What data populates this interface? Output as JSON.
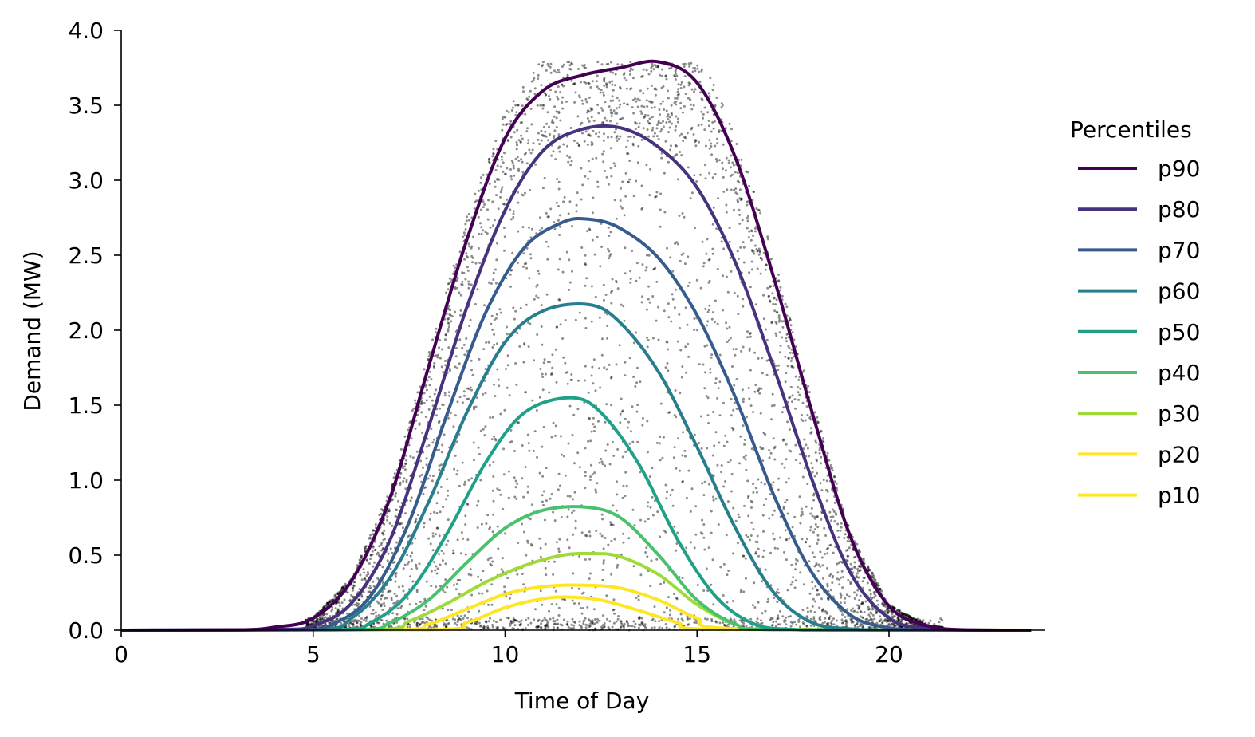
{
  "chart_data": {
    "type": "line",
    "xlabel": "Time of Day",
    "ylabel": "Demand (MW)",
    "xlim": [
      0,
      24
    ],
    "ylim": [
      0,
      4.0
    ],
    "x_ticks": [
      0,
      5,
      10,
      15,
      20
    ],
    "x_tick_labels": [
      "0",
      "5",
      "10",
      "15",
      "20"
    ],
    "y_ticks": [
      0,
      0.5,
      1.0,
      1.5,
      2.0,
      2.5,
      3.0,
      3.5,
      4.0
    ],
    "y_tick_labels": [
      "0.0",
      "0.5",
      "1.0",
      "1.5",
      "2.0",
      "2.5",
      "3.0",
      "3.5",
      "4.0"
    ],
    "grid": false,
    "legend": {
      "title": "Percentiles",
      "placement": "right"
    },
    "scatter": {
      "color": "#000000",
      "approx_count": 5000,
      "ymax": 3.79,
      "description_only": false
    },
    "series": [
      {
        "name": "p90",
        "color": "#440154",
        "x": [
          0,
          3,
          4,
          5,
          6,
          7,
          8,
          9,
          10,
          11,
          12,
          13,
          14,
          15,
          16,
          17,
          18,
          19,
          20,
          21,
          22,
          23.7
        ],
        "y": [
          0,
          0.002,
          0.02,
          0.08,
          0.33,
          0.88,
          1.75,
          2.6,
          3.28,
          3.6,
          3.7,
          3.75,
          3.79,
          3.65,
          3.15,
          2.35,
          1.45,
          0.62,
          0.16,
          0.03,
          0.002,
          0
        ]
      },
      {
        "name": "p80",
        "color": "#46327e",
        "x": [
          0,
          4,
          5,
          6,
          7,
          8,
          9,
          10,
          11,
          12,
          13,
          14,
          15,
          16,
          17,
          18,
          19,
          20,
          21,
          22,
          23.7
        ],
        "y": [
          0,
          0.005,
          0.03,
          0.18,
          0.6,
          1.35,
          2.15,
          2.8,
          3.2,
          3.34,
          3.35,
          3.22,
          2.95,
          2.45,
          1.75,
          1.0,
          0.38,
          0.08,
          0.01,
          0.001,
          0
        ]
      },
      {
        "name": "p70",
        "color": "#365c8d",
        "x": [
          0,
          4.5,
          5.5,
          6.5,
          7.5,
          8.5,
          9.5,
          10.5,
          11.5,
          12.2,
          13,
          14,
          15,
          16,
          17,
          18,
          19,
          20,
          21,
          22,
          23.7
        ],
        "y": [
          0,
          0.003,
          0.04,
          0.23,
          0.72,
          1.45,
          2.12,
          2.55,
          2.72,
          2.74,
          2.68,
          2.48,
          2.1,
          1.55,
          0.9,
          0.38,
          0.1,
          0.015,
          0.002,
          0,
          0
        ]
      },
      {
        "name": "p60",
        "color": "#277f8e",
        "x": [
          0,
          5,
          6,
          7,
          8,
          9,
          10,
          11,
          12.2,
          13,
          14,
          15,
          16,
          17,
          18,
          19,
          20,
          21,
          23.7
        ],
        "y": [
          0,
          0.003,
          0.08,
          0.35,
          0.85,
          1.45,
          1.92,
          2.13,
          2.17,
          2.05,
          1.72,
          1.22,
          0.68,
          0.25,
          0.05,
          0.008,
          0,
          0,
          0
        ]
      },
      {
        "name": "p50",
        "color": "#1fa187",
        "x": [
          0,
          5.5,
          6.5,
          7.5,
          8.5,
          9.5,
          10.5,
          11.7,
          12.5,
          13.5,
          14.5,
          15.5,
          16.5,
          17.5,
          18.5,
          23.7
        ],
        "y": [
          0,
          0.002,
          0.05,
          0.25,
          0.65,
          1.12,
          1.45,
          1.55,
          1.45,
          1.1,
          0.6,
          0.22,
          0.04,
          0.005,
          0,
          0
        ]
      },
      {
        "name": "p40",
        "color": "#4ac16d",
        "x": [
          0,
          6,
          7,
          8,
          9,
          10,
          11,
          12.1,
          13,
          14,
          15,
          16,
          17,
          23.7
        ],
        "y": [
          0,
          0.002,
          0.05,
          0.2,
          0.45,
          0.68,
          0.8,
          0.82,
          0.75,
          0.5,
          0.2,
          0.04,
          0.003,
          0
        ]
      },
      {
        "name": "p30",
        "color": "#a0da39",
        "x": [
          0,
          6.5,
          7.5,
          8.5,
          9.5,
          10.5,
          11.5,
          12.3,
          13,
          14,
          15,
          16,
          17,
          23.7
        ],
        "y": [
          0,
          0.002,
          0.06,
          0.18,
          0.32,
          0.43,
          0.5,
          0.51,
          0.49,
          0.37,
          0.17,
          0.04,
          0.004,
          0
        ]
      },
      {
        "name": "p20",
        "color": "#fde725",
        "x": [
          0,
          7,
          8,
          9,
          10,
          11,
          12,
          13,
          14,
          15,
          16,
          23.7
        ],
        "y": [
          0,
          0.002,
          0.04,
          0.14,
          0.24,
          0.29,
          0.3,
          0.28,
          0.2,
          0.08,
          0.01,
          0
        ]
      },
      {
        "name": "p10",
        "color": "#fde725",
        "x": [
          0,
          8,
          9,
          10,
          11,
          11.7,
          12.5,
          13.5,
          14.5,
          15.5,
          23.7
        ],
        "y": [
          0,
          0.002,
          0.05,
          0.15,
          0.21,
          0.22,
          0.2,
          0.13,
          0.05,
          0.005,
          0
        ]
      }
    ]
  }
}
